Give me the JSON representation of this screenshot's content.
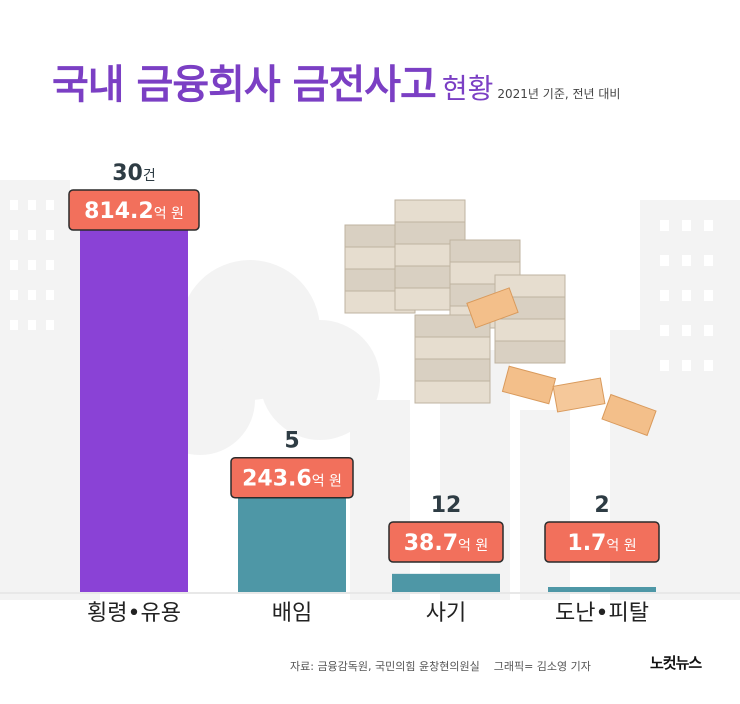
{
  "title": {
    "main": "국내 금융회사 금전사고",
    "sub": "현황",
    "note": "2021년 기준, 전년 대비"
  },
  "chart_data": {
    "type": "bar",
    "title": "국내 금융회사 금전사고 현황",
    "subtitle": "2021년 기준, 전년 대비",
    "categories": [
      "횡령•유용",
      "배임",
      "사기",
      "도난•피탈"
    ],
    "series": [
      {
        "values": [
          814.2,
          243.6,
          38.7,
          1.7
        ]
      }
    ],
    "value_unit": "억 원",
    "counts": [
      "30",
      "5",
      "12",
      "2"
    ],
    "count_unit": "건",
    "colors": [
      "#8a42d6",
      "#4e97a6",
      "#4e97a6",
      "#4e97a6"
    ],
    "label_color": "#f2705c",
    "xlabel": "",
    "ylabel": "",
    "grid": false
  },
  "footer": {
    "source": "자료: 금융감독원, 국민의힘 윤창현의원실",
    "graphic": "그래픽= 김소영 기자",
    "logo": "노컷뉴스"
  }
}
